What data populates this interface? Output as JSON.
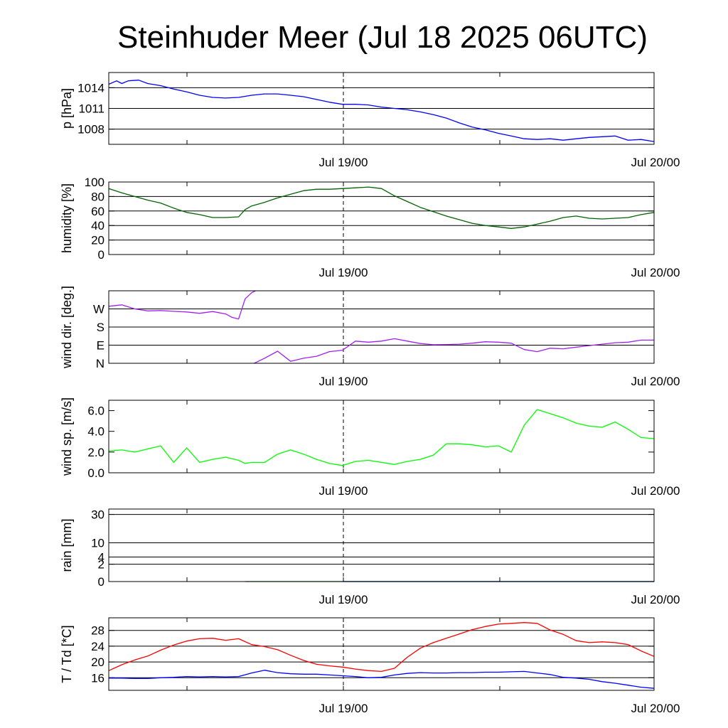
{
  "page": {
    "title": "Steinhuder Meer (Jul 18 2025 06UTC)"
  },
  "chart_data": [
    {
      "type": "line",
      "ylabel": "p [hPa]",
      "xticks": [
        "Jul 19/00",
        "Jul 20/00"
      ],
      "xlim": [
        0,
        42
      ],
      "ylim": [
        1005.8,
        1016.2
      ],
      "yticks": [
        1008,
        1011,
        1014
      ],
      "ytick_labels": [
        "1008",
        "1011",
        "1014"
      ],
      "grid_y": [
        1008,
        1011,
        1014
      ],
      "series": [
        {
          "color": "#0000ff",
          "x": [
            0,
            0.6,
            1.0,
            1.5,
            2.3,
            3,
            4,
            5,
            6,
            7,
            8,
            9,
            10,
            11,
            12,
            13,
            14,
            15,
            16,
            17,
            18,
            19,
            20,
            21,
            22,
            23,
            24,
            25,
            26,
            27,
            28,
            29,
            30,
            31,
            32,
            33,
            34,
            35,
            36,
            37,
            38,
            39,
            40,
            41,
            42
          ],
          "y": [
            1014.5,
            1015.0,
            1014.6,
            1015.0,
            1015.1,
            1014.6,
            1014.3,
            1013.8,
            1013.4,
            1012.9,
            1012.6,
            1012.5,
            1012.6,
            1012.9,
            1013.1,
            1013.1,
            1012.9,
            1012.7,
            1012.3,
            1011.9,
            1011.6,
            1011.6,
            1011.5,
            1011.2,
            1011.0,
            1010.8,
            1010.5,
            1010.1,
            1009.6,
            1008.9,
            1008.3,
            1007.9,
            1007.4,
            1007.0,
            1006.6,
            1006.5,
            1006.6,
            1006.4,
            1006.6,
            1006.8,
            1006.9,
            1007.0,
            1006.4,
            1006.5,
            1006.2
          ]
        }
      ]
    },
    {
      "type": "line",
      "ylabel": "humidity [%]",
      "xticks": [
        "Jul 19/00",
        "Jul 20/00"
      ],
      "xlim": [
        0,
        42
      ],
      "ylim": [
        0,
        100
      ],
      "yticks": [
        0,
        20,
        40,
        60,
        80,
        100
      ],
      "ytick_labels": [
        "0",
        "20",
        "40",
        "60",
        "80",
        "100"
      ],
      "grid_y": [
        20,
        40,
        60,
        80
      ],
      "series": [
        {
          "color": "#006400",
          "x": [
            0,
            1,
            2,
            3,
            4,
            5,
            6,
            7,
            8,
            9,
            10,
            10.5,
            11,
            12,
            13,
            14,
            15,
            16,
            17,
            18,
            19,
            20,
            21,
            22,
            23,
            24,
            25,
            26,
            27,
            28,
            29,
            30,
            31,
            32,
            33,
            34,
            35,
            36,
            37,
            38,
            39,
            40,
            41,
            42
          ],
          "y": [
            91,
            85,
            80,
            75,
            71,
            64,
            58,
            55,
            51,
            51,
            52,
            62,
            67,
            72,
            78,
            83,
            88,
            90,
            90,
            91,
            92,
            93,
            91,
            81,
            73,
            65,
            59,
            53,
            48,
            43,
            40,
            38,
            36,
            38,
            42,
            46,
            51,
            53,
            50,
            49,
            50,
            51,
            55,
            58
          ]
        }
      ]
    },
    {
      "type": "line",
      "ylabel": "wind dir. [deg.]",
      "xticks": [
        "Jul 19/00",
        "Jul 20/00"
      ],
      "xlim": [
        0,
        42
      ],
      "ylim": [
        0,
        360
      ],
      "yticks": [
        0,
        90,
        180,
        270
      ],
      "ytick_labels": [
        "N",
        "E",
        "S",
        "W"
      ],
      "grid_y": [
        90,
        180,
        270
      ],
      "series": [
        {
          "color": "#a020f0",
          "x": [
            0,
            1,
            2,
            3,
            4,
            5,
            6,
            7,
            8,
            9,
            9.5,
            10,
            10.5,
            11,
            11.3
          ],
          "y": [
            283,
            290,
            270,
            260,
            262,
            258,
            255,
            248,
            257,
            245,
            228,
            220,
            320,
            350,
            360
          ]
        },
        {
          "color": "#a020f0",
          "x": [
            11.2,
            12,
            13,
            14,
            15,
            16,
            17,
            18,
            19,
            20,
            21,
            22,
            23,
            24,
            25,
            26,
            27,
            28,
            29,
            30,
            31,
            32,
            33,
            34,
            35,
            36,
            37,
            38,
            39,
            40,
            41,
            42
          ],
          "y": [
            0,
            25,
            60,
            10,
            25,
            35,
            58,
            65,
            110,
            105,
            110,
            122,
            110,
            98,
            92,
            93,
            95,
            100,
            107,
            105,
            100,
            68,
            58,
            75,
            72,
            80,
            88,
            95,
            102,
            105,
            115,
            115
          ]
        }
      ]
    },
    {
      "type": "line",
      "ylabel": "wind sp. [m/s]",
      "xticks": [
        "Jul 19/00",
        "Jul 20/00"
      ],
      "xlim": [
        0,
        42
      ],
      "ylim": [
        0,
        7
      ],
      "yticks": [
        0,
        2,
        4,
        6
      ],
      "ytick_labels": [
        "0.0",
        "2.0",
        "4.0",
        "6.0"
      ],
      "grid_y": [],
      "series": [
        {
          "color": "#00ff00",
          "x": [
            0,
            1,
            2,
            3,
            4,
            5,
            6,
            7,
            8,
            9,
            10,
            10.5,
            11,
            12,
            13,
            14,
            15,
            16,
            17,
            18,
            19,
            20,
            21,
            22,
            23,
            24,
            25,
            26,
            27,
            28,
            29,
            30,
            31,
            32,
            33,
            34,
            35,
            36,
            37,
            38,
            39,
            40,
            41,
            42
          ],
          "y": [
            2.1,
            2.2,
            2.0,
            2.3,
            2.6,
            1.0,
            2.4,
            1.0,
            1.3,
            1.5,
            1.2,
            0.9,
            1.0,
            1.0,
            1.8,
            2.2,
            1.8,
            1.3,
            0.9,
            0.7,
            1.1,
            1.2,
            1.0,
            0.8,
            1.1,
            1.3,
            1.7,
            2.8,
            2.8,
            2.7,
            2.5,
            2.6,
            2.0,
            4.6,
            6.1,
            5.7,
            5.3,
            4.8,
            4.5,
            4.4,
            4.9,
            4.2,
            3.4,
            3.3
          ]
        }
      ]
    },
    {
      "type": "line",
      "ylabel": "rain [mm]",
      "xticks": [
        "Jul 19/00",
        "Jul 20/00"
      ],
      "xlim": [
        0,
        42
      ],
      "ylim": [
        0,
        35
      ],
      "scale": "sqrt",
      "yticks": [
        0,
        2,
        4,
        10,
        30
      ],
      "ytick_labels": [
        "0",
        "2",
        "4",
        "10",
        "30"
      ],
      "grid_y": [
        2,
        4,
        10,
        30
      ],
      "series": [
        {
          "color": "#008000",
          "x": [
            10.5,
            42
          ],
          "y": [
            0,
            0
          ]
        },
        {
          "color": "#0000ff",
          "x": [
            18,
            42
          ],
          "y": [
            0,
            0
          ]
        }
      ]
    },
    {
      "type": "line",
      "ylabel": "T / Td [*C]",
      "xticks": [
        "Jul 19/00",
        "Jul 20/00"
      ],
      "xlim": [
        0,
        42
      ],
      "ylim": [
        12.8,
        31.2
      ],
      "yticks": [
        16,
        20,
        24,
        28
      ],
      "ytick_labels": [
        "16",
        "20",
        "24",
        "28"
      ],
      "grid_y": [
        16,
        20,
        24,
        28
      ],
      "series": [
        {
          "color": "#ff0000",
          "x": [
            0,
            1,
            2,
            3,
            4,
            5,
            6,
            7,
            8,
            9,
            10,
            11,
            12,
            13,
            14,
            15,
            16,
            17,
            18,
            19,
            20,
            21,
            22,
            23,
            24,
            25,
            26,
            27,
            28,
            29,
            30,
            31,
            32,
            33,
            34,
            35,
            36,
            37,
            38,
            39,
            40,
            41,
            42
          ],
          "y": [
            17.8,
            19.3,
            20.5,
            21.5,
            23.0,
            24.3,
            25.3,
            25.9,
            26.0,
            25.5,
            25.9,
            24.4,
            23.9,
            23.1,
            21.7,
            20.4,
            19.4,
            19.0,
            18.7,
            18.2,
            17.8,
            17.6,
            18.4,
            21.2,
            23.5,
            24.9,
            26.0,
            27.1,
            28.2,
            29.0,
            29.6,
            29.8,
            30.0,
            29.8,
            28.1,
            27.0,
            25.4,
            24.9,
            25.1,
            24.9,
            24.4,
            22.8,
            21.4
          ]
        },
        {
          "color": "#0000ff",
          "x": [
            0,
            1,
            2,
            3,
            4,
            5,
            6,
            7,
            8,
            9,
            10,
            11,
            12,
            13,
            14,
            15,
            16,
            17,
            18,
            19,
            20,
            21,
            22,
            23,
            24,
            25,
            26,
            27,
            28,
            29,
            30,
            31,
            32,
            33,
            34,
            35,
            36,
            37,
            38,
            39,
            40,
            41,
            42
          ],
          "y": [
            15.9,
            15.9,
            15.8,
            15.8,
            16.0,
            16.1,
            16.3,
            16.2,
            16.3,
            16.2,
            16.3,
            17.2,
            17.9,
            17.3,
            17.0,
            16.9,
            16.9,
            16.7,
            16.5,
            16.3,
            16.0,
            16.1,
            16.7,
            17.1,
            17.3,
            17.2,
            17.2,
            17.3,
            17.3,
            17.4,
            17.4,
            17.5,
            17.6,
            17.2,
            16.8,
            16.1,
            15.9,
            15.6,
            15.0,
            14.6,
            14.1,
            13.6,
            13.3
          ]
        }
      ]
    }
  ]
}
